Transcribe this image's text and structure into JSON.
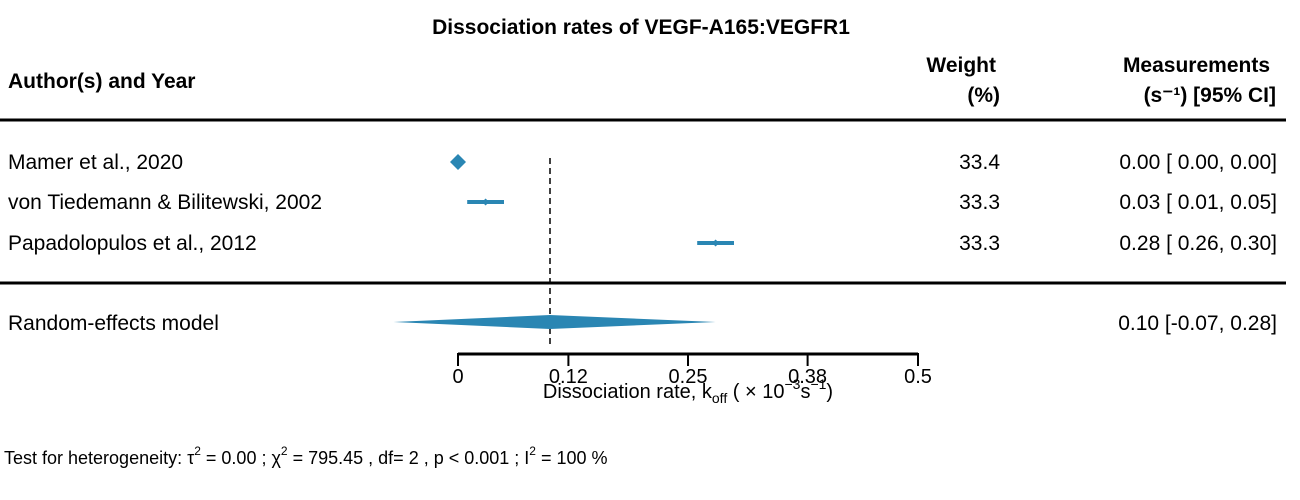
{
  "title": "Dissociation rates of VEGF-A165:VEGFR1",
  "headers": {
    "study": "Author(s) and Year",
    "weight_line1": "Weight",
    "weight_line2": "(%)",
    "meas_line1": "Measurements",
    "meas_line2": "(s⁻¹) [95% CI]"
  },
  "colors": {
    "marker": "#2a86b3",
    "text": "#000000"
  },
  "chart_data": {
    "type": "forest",
    "xlim": [
      0,
      0.5
    ],
    "ticks": [
      0,
      0.12,
      0.25,
      0.38,
      0.5
    ],
    "tick_labels": [
      "0",
      "0.12",
      "0.25",
      "0.38",
      "0.5"
    ],
    "xlabel": {
      "base": "Dissociation rate, k",
      "sub": "off",
      "paren_open": " ( × 10",
      "sup1": "−3",
      "unit": "s",
      "sup2": "−1",
      "paren_close": ")"
    },
    "reference_line": 0.1,
    "studies": [
      {
        "label": "Mamer et al., 2020",
        "estimate": 0.0,
        "lower": 0.0,
        "upper": 0.0,
        "weight": "33.4",
        "ci_text": "0.00 [ 0.00, 0.00]"
      },
      {
        "label": "von Tiedemann & Bilitewski, 2002",
        "estimate": 0.03,
        "lower": 0.01,
        "upper": 0.05,
        "weight": "33.3",
        "ci_text": "0.03 [ 0.01, 0.05]"
      },
      {
        "label": "Papadolopulos et al., 2012",
        "estimate": 0.28,
        "lower": 0.26,
        "upper": 0.3,
        "weight": "33.3",
        "ci_text": "0.28 [ 0.26, 0.30]"
      }
    ],
    "summary": {
      "label": "Random-effects model",
      "estimate": 0.1,
      "lower": -0.07,
      "upper": 0.28,
      "ci_text": "0.10 [-0.07, 0.28]"
    }
  },
  "heterogeneity": {
    "prefix": "Test for heterogeneity:  τ",
    "tau_sup": "2",
    "tau_val": " = 0.00 ;  χ",
    "chi_sup": "2",
    "chi_val": " = 795.45 , df= 2 ,  p < 0.001 ;  I",
    "i_sup": "2",
    "i_val": " = 100 %"
  }
}
